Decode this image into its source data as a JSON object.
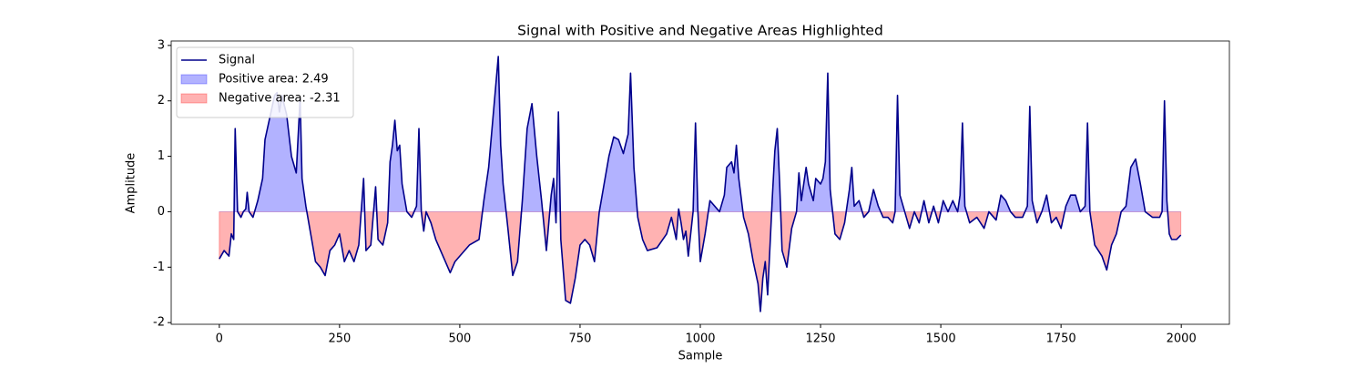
{
  "chart_data": {
    "type": "line",
    "title": "Signal with Positive and Negative Areas Highlighted",
    "xlabel": "Sample",
    "ylabel": "Amplitude",
    "xlim": [
      -100,
      2100
    ],
    "ylim": [
      -2.03,
      3.08
    ],
    "xticks": [
      0,
      250,
      500,
      750,
      1000,
      1250,
      1500,
      1750,
      2000
    ],
    "yticks": [
      -2,
      -1,
      0,
      1,
      2,
      3
    ],
    "legend": "upper left",
    "x": [
      0,
      10,
      20,
      25,
      30,
      33,
      38,
      45,
      50,
      55,
      58,
      62,
      70,
      80,
      90,
      95,
      105,
      115,
      120,
      125,
      130,
      140,
      150,
      160,
      168,
      172,
      180,
      190,
      200,
      210,
      220,
      230,
      240,
      250,
      260,
      270,
      280,
      290,
      300,
      305,
      315,
      325,
      330,
      340,
      350,
      355,
      360,
      365,
      370,
      375,
      380,
      390,
      400,
      410,
      415,
      420,
      425,
      430,
      440,
      450,
      470,
      480,
      490,
      500,
      520,
      540,
      550,
      560,
      570,
      580,
      585,
      590,
      600,
      610,
      620,
      630,
      640,
      650,
      660,
      670,
      680,
      690,
      695,
      700,
      705,
      710,
      720,
      730,
      740,
      750,
      760,
      770,
      780,
      790,
      800,
      810,
      820,
      830,
      840,
      850,
      855,
      862,
      870,
      880,
      890,
      910,
      930,
      940,
      950,
      955,
      960,
      965,
      970,
      975,
      985,
      990,
      995,
      1000,
      1010,
      1020,
      1040,
      1050,
      1055,
      1065,
      1070,
      1075,
      1080,
      1090,
      1100,
      1110,
      1120,
      1125,
      1130,
      1135,
      1140,
      1150,
      1155,
      1160,
      1165,
      1170,
      1180,
      1190,
      1200,
      1205,
      1210,
      1220,
      1225,
      1235,
      1240,
      1250,
      1255,
      1260,
      1265,
      1270,
      1280,
      1290,
      1300,
      1310,
      1315,
      1320,
      1330,
      1340,
      1350,
      1360,
      1370,
      1380,
      1390,
      1400,
      1405,
      1410,
      1415,
      1425,
      1435,
      1445,
      1455,
      1465,
      1475,
      1485,
      1495,
      1505,
      1515,
      1525,
      1535,
      1540,
      1545,
      1550,
      1560,
      1575,
      1590,
      1600,
      1615,
      1625,
      1635,
      1645,
      1655,
      1670,
      1680,
      1685,
      1690,
      1700,
      1710,
      1720,
      1730,
      1740,
      1750,
      1760,
      1770,
      1780,
      1790,
      1800,
      1805,
      1810,
      1820,
      1835,
      1845,
      1855,
      1865,
      1875,
      1885,
      1895,
      1905,
      1915,
      1925,
      1940,
      1955,
      1960,
      1965,
      1970,
      1975,
      1980,
      1990,
      1999
    ],
    "series": [
      {
        "name": "Signal",
        "color": "#00008b",
        "values": [
          -0.85,
          -0.7,
          -0.8,
          -0.4,
          -0.5,
          1.5,
          0.0,
          -0.1,
          0.0,
          0.05,
          0.35,
          0.0,
          -0.1,
          0.2,
          0.6,
          1.3,
          1.7,
          2.1,
          2.15,
          1.8,
          2.1,
          1.75,
          1.0,
          0.7,
          2.05,
          0.6,
          0.1,
          -0.4,
          -0.9,
          -1.0,
          -1.15,
          -0.7,
          -0.6,
          -0.4,
          -0.9,
          -0.7,
          -0.9,
          -0.6,
          0.6,
          -0.7,
          -0.6,
          0.45,
          -0.5,
          -0.6,
          -0.2,
          0.9,
          1.2,
          1.65,
          1.1,
          1.2,
          0.5,
          0.0,
          -0.1,
          0.1,
          1.5,
          0.0,
          -0.35,
          0.0,
          -0.2,
          -0.5,
          -0.9,
          -1.1,
          -0.9,
          -0.8,
          -0.6,
          -0.5,
          0.2,
          0.8,
          1.8,
          2.8,
          1.2,
          0.5,
          -0.3,
          -1.15,
          -0.9,
          0.2,
          1.5,
          1.95,
          1.0,
          0.2,
          -0.7,
          0.3,
          0.6,
          -0.2,
          1.8,
          -0.5,
          -1.6,
          -1.65,
          -1.2,
          -0.6,
          -0.5,
          -0.6,
          -0.9,
          0.0,
          0.5,
          1.0,
          1.35,
          1.3,
          1.05,
          1.4,
          2.5,
          0.8,
          -0.1,
          -0.5,
          -0.7,
          -0.65,
          -0.4,
          -0.1,
          -0.5,
          0.05,
          -0.2,
          -0.5,
          -0.35,
          -0.8,
          0.0,
          1.6,
          0.0,
          -0.9,
          -0.4,
          0.2,
          0.0,
          0.3,
          0.8,
          0.9,
          0.7,
          1.2,
          0.6,
          -0.1,
          -0.4,
          -0.9,
          -1.3,
          -1.8,
          -1.2,
          -0.9,
          -1.5,
          0.3,
          1.1,
          1.5,
          0.5,
          -0.7,
          -1.0,
          -0.3,
          0.0,
          0.7,
          0.2,
          0.8,
          0.5,
          0.2,
          0.6,
          0.5,
          0.6,
          0.9,
          2.5,
          0.4,
          -0.4,
          -0.5,
          -0.2,
          0.4,
          0.8,
          0.1,
          0.2,
          -0.1,
          0.0,
          0.4,
          0.1,
          -0.1,
          -0.1,
          -0.2,
          0.0,
          2.1,
          0.3,
          0.0,
          -0.3,
          0.0,
          -0.2,
          0.2,
          -0.2,
          0.1,
          -0.2,
          0.2,
          0.0,
          0.2,
          0.0,
          0.3,
          1.6,
          0.1,
          -0.2,
          -0.1,
          -0.3,
          0.0,
          -0.15,
          0.3,
          0.2,
          0.0,
          -0.1,
          -0.1,
          0.1,
          1.9,
          0.2,
          -0.2,
          0.0,
          0.3,
          -0.2,
          -0.1,
          -0.3,
          0.1,
          0.3,
          0.3,
          0.0,
          0.1,
          1.6,
          0.0,
          -0.6,
          -0.8,
          -1.05,
          -0.6,
          -0.4,
          0.0,
          0.1,
          0.8,
          0.95,
          0.5,
          0.0,
          -0.1,
          -0.1,
          0.0,
          2.0,
          0.2,
          -0.4,
          -0.5,
          -0.5,
          -0.42
        ]
      }
    ],
    "fills": [
      {
        "name": "Positive area: 2.49",
        "color": "#0000ff",
        "side": "positive"
      },
      {
        "name": "Negative area: -2.31",
        "color": "#ff0000",
        "side": "negative"
      }
    ]
  }
}
